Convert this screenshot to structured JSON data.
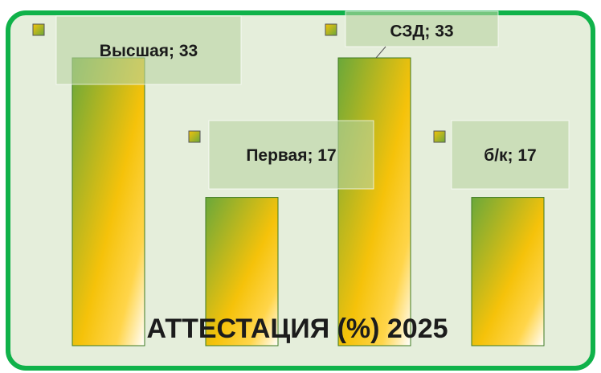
{
  "chart_data": {
    "type": "bar",
    "title": "АТТЕСТАЦИЯ (%) 2025",
    "values": [
      33,
      17,
      33,
      17
    ],
    "value_labels": [
      "Высшая; 33",
      "Первая; 17",
      "СЗД; 33",
      "б/к; 17"
    ],
    "color": "#6aa83a"
  }
}
